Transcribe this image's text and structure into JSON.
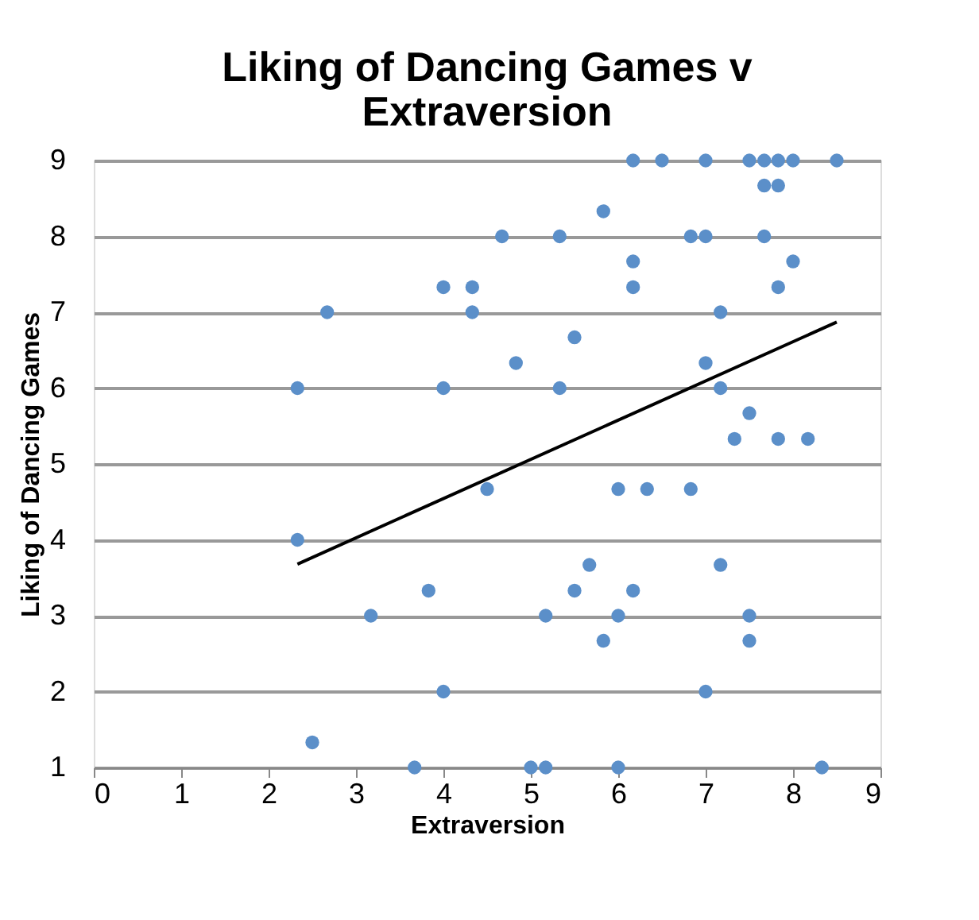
{
  "chart_data": {
    "type": "scatter",
    "title": [
      "Liking of Dancing Games v",
      "Extraversion"
    ],
    "xlabel": "Extraversion",
    "ylabel": "Liking of Dancing Games",
    "xlim": [
      0,
      9
    ],
    "xticks": [
      0,
      1,
      2,
      3,
      4,
      5,
      6,
      7,
      8,
      9
    ],
    "ylim": [
      1,
      9
    ],
    "yticks": [
      1,
      2,
      3,
      4,
      5,
      6,
      7,
      8,
      9
    ],
    "grid": "y",
    "series": [
      {
        "marker": "circle",
        "color": "#5b8fc9",
        "x": [
          6.17,
          6.5,
          7,
          7.5,
          7.67,
          7.83,
          8,
          8.5,
          7.67,
          7.83,
          5.83,
          4.67,
          5.33,
          6.83,
          7,
          7.67,
          6.17,
          8,
          4,
          4.33,
          6.17,
          7.83,
          2.67,
          4.33,
          7.17,
          5.5,
          4.83,
          7,
          2.33,
          4,
          5.33,
          7.17,
          7.5,
          7.33,
          7.83,
          8.17,
          4.5,
          6,
          6.33,
          6.83,
          2.33,
          5.67,
          7.17,
          3.83,
          5.5,
          6.17,
          3.17,
          5.17,
          6,
          7.5,
          5.83,
          7.5,
          4,
          7,
          2.5,
          3.67,
          5,
          5.17,
          6,
          8.33
        ],
        "values": [
          9,
          9,
          9,
          9,
          9,
          9,
          9,
          9,
          8.67,
          8.67,
          8.33,
          8,
          8,
          8,
          8,
          8,
          7.67,
          7.67,
          7.33,
          7.33,
          7.33,
          7.33,
          7,
          7,
          7,
          6.67,
          6.33,
          6.33,
          6,
          6,
          6,
          6,
          5.67,
          5.33,
          5.33,
          5.33,
          4.67,
          4.67,
          4.67,
          4.67,
          4,
          3.67,
          3.67,
          3.33,
          3.33,
          3.33,
          3,
          3,
          3,
          3,
          2.67,
          2.67,
          2,
          2,
          1.33,
          1,
          1,
          1,
          1,
          1
        ]
      },
      {
        "type": "line",
        "color": "#000000",
        "x": [
          2.33,
          8.5
        ],
        "values": [
          3.68,
          6.87
        ]
      }
    ]
  }
}
